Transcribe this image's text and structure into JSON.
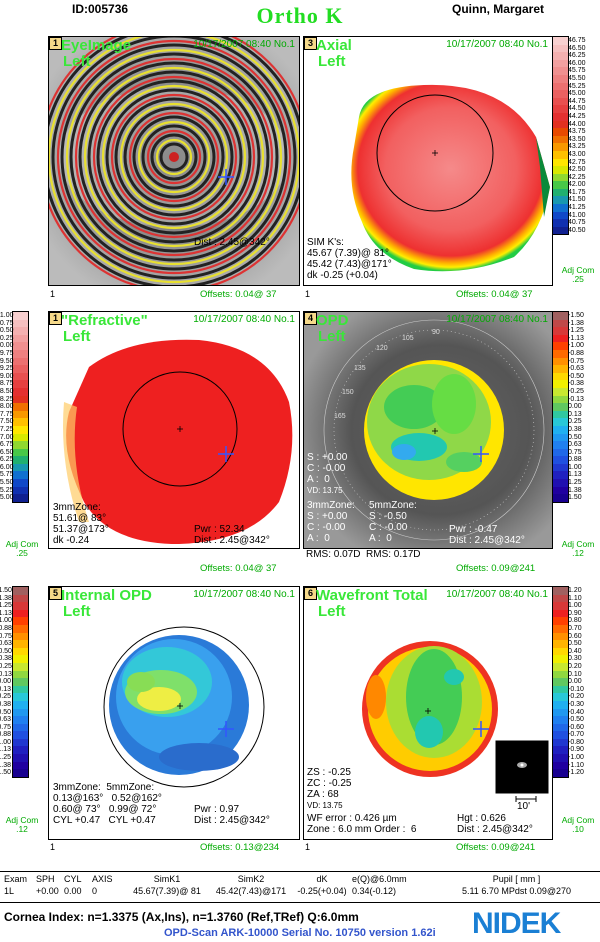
{
  "header": {
    "id": "ID:005736",
    "title": "Ortho K",
    "patient": "Quinn, Margaret"
  },
  "panels": [
    {
      "num": "1",
      "title": "EyeImage",
      "eye": "Left",
      "date": "10/17/2007 08:40 No.1",
      "lines": [
        "Dist : 2.45@342°"
      ],
      "below": "1",
      "offsets": "Offsets: 0.04@ 37"
    },
    {
      "num": "3",
      "title": "Axial",
      "eye": "Left",
      "date": "10/17/2007 08:40 No.1",
      "lines": [
        "SIM K's:",
        "45.67 (7.39)@ 81°",
        "45.42 (7.43)@171°",
        "dk -0.25 (+0.04)"
      ],
      "below": "1",
      "offsets": "Offsets: 0.04@ 37",
      "scale": [
        "46.75",
        "46.50",
        "46.25",
        "46.00",
        "45.75",
        "45.50",
        "45.25",
        "45.00",
        "44.75",
        "44.50",
        "44.25",
        "44.00",
        "43.75",
        "43.50",
        "43.25",
        "43.00",
        "42.75",
        "42.50",
        "42.25",
        "42.00",
        "41.75",
        "41.50",
        "41.25",
        "41.00",
        "40.75",
        "40.50"
      ],
      "adj": "Adj Com .25"
    },
    {
      "num": "1",
      "title": "\"Refractive\"",
      "eye": "Left",
      "date": "10/17/2007 08:40 No.1",
      "zone": [
        "3mmZone:",
        "51.61@ 83°",
        "51.37@173°",
        "dk -0.24"
      ],
      "pwr": "Pwr : 52.34",
      "dist": "Dist : 2.45@342°",
      "offsets": "Offsets: 0.04@ 37",
      "scale": [
        "51.00",
        "50.75",
        "50.50",
        "50.25",
        "50.00",
        "49.75",
        "49.50",
        "49.25",
        "49.00",
        "48.75",
        "48.50",
        "48.25",
        "48.00",
        "47.75",
        "47.50",
        "47.25",
        "47.00",
        "46.75",
        "46.50",
        "46.25",
        "46.00",
        "45.75",
        "45.50",
        "45.25",
        "45.00"
      ],
      "adj": "Adj Com .25"
    },
    {
      "num": "4",
      "title": "OPD",
      "eye": "Left",
      "date": "10/17/2007 08:40 No.1",
      "sc": [
        "S : +0.00",
        "C : -0.00",
        "A :  0",
        "VD: 13.75"
      ],
      "zone3": [
        "3mmZone:",
        "S : +0.00",
        "C : -0.00",
        "A :  0"
      ],
      "zone5": [
        "5mmZone:",
        "S : -0.50",
        "C : -0.00",
        "A :  0"
      ],
      "rms": "RMS: 0.07D  RMS: 0.17D",
      "pwr": "Pwr : -0.47",
      "dist": "Dist : 2.45@342°",
      "offsets": "Offsets: 0.09@241",
      "scale": [
        "-1.50",
        "-1.38",
        "-1.25",
        "-1.13",
        "-1.00",
        "-0.88",
        "-0.75",
        "-0.63",
        "-0.50",
        "-0.38",
        "-0.25",
        "-0.13",
        "0.00",
        "0.13",
        "0.25",
        "0.38",
        "0.50",
        "0.63",
        "0.75",
        "0.88",
        "1.00",
        "1.13",
        "1.25",
        "1.38",
        "1.50"
      ],
      "adj": "Adj Com .12",
      "protractor": [
        "90",
        "105",
        "120",
        "135",
        "150",
        "165"
      ]
    },
    {
      "num": "5",
      "title": "Internal OPD",
      "eye": "Left",
      "date": "10/17/2007 08:40 No.1",
      "zoneh": "3mmZone:  5mmZone:",
      "zrows": [
        "0.13@163°   0.52@162°",
        "0.60@ 73°   0.99@ 72°",
        "CYL +0.47   CYL +0.47"
      ],
      "pwr": "Pwr : 0.97",
      "dist": "Dist : 2.45@342°",
      "below": "1",
      "offsets": "Offsets: 0.13@234",
      "scale": [
        "-1.50",
        "-1.38",
        "-1.25",
        "-1.13",
        "-1.00",
        "-0.88",
        "-0.75",
        "-0.63",
        "-0.50",
        "-0.38",
        "-0.25",
        "-0.13",
        "0.00",
        "0.13",
        "0.25",
        "0.38",
        "0.50",
        "0.63",
        "0.75",
        "0.88",
        "1.00",
        "1.13",
        "1.25",
        "1.38",
        "1.50"
      ],
      "adj": "Adj Com .12"
    },
    {
      "num": "6",
      "title": "Wavefront Total",
      "eye": "Left",
      "date": "10/17/2007 08:40 No.1",
      "z": [
        "ZS : -0.25",
        "ZC : -0.25",
        "ZA : 68",
        "VD: 13.75"
      ],
      "wf": "WF error : 0.426 µm",
      "zone": "Zone : 6.0 mm Order :  6",
      "hgt": "Hgt : 0.626",
      "dist": "Dist : 2.45@342°",
      "inset": "10'",
      "below": "1",
      "offsets": "Offsets: 0.09@241",
      "scale": [
        "1.20",
        "1.10",
        "1.00",
        "0.90",
        "0.80",
        "0.70",
        "0.60",
        "0.50",
        "0.40",
        "0.30",
        "0.20",
        "0.10",
        "0.00",
        "-0.10",
        "-0.20",
        "-0.30",
        "-0.40",
        "-0.50",
        "-0.60",
        "-0.70",
        "-0.80",
        "-0.90",
        "-1.00",
        "-1.10",
        "-1.20"
      ],
      "adj": "Adj Com .10"
    }
  ],
  "table": {
    "headers": [
      "Exam",
      "SPH",
      "CYL",
      "AXIS",
      "SimK1",
      "SimK2",
      "dK",
      "e(Q)@6.0mm",
      "Pupil [ mm ]"
    ],
    "row": [
      "1L",
      "+0.00",
      "0.00",
      "0",
      "45.67(7.39)@ 81",
      "45.42(7.43)@171",
      "-0.25(+0.04)",
      "0.34(-0.12)",
      "5.11  6.70 MPdst  0.09@270"
    ]
  },
  "footer": {
    "cornea": "Cornea Index: n=1.3375 (Ax,Ins), n=1.3760 (Ref,TRef)  Q:6.0mm",
    "serial": "OPD-Scan ARK-10000 Serial No. 10750  version     1.62i",
    "logo": "NIDEK"
  }
}
